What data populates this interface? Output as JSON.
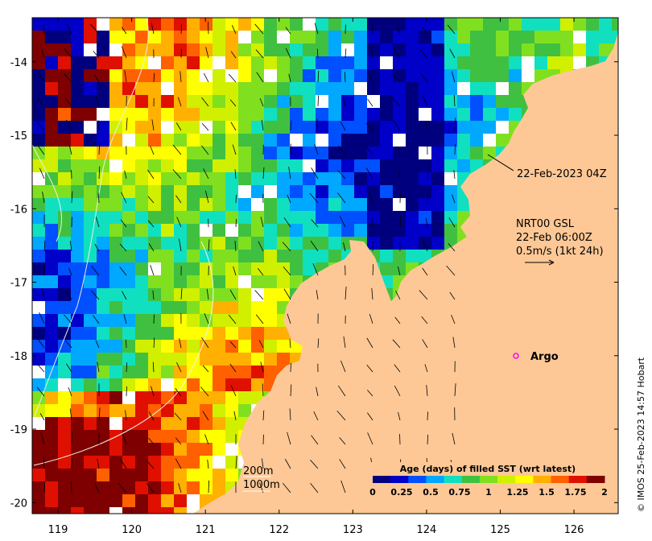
{
  "map": {
    "lon_ticks": [
      "119",
      "120",
      "121",
      "122",
      "123",
      "124",
      "125",
      "126"
    ],
    "lat_ticks": [
      "-14",
      "-15",
      "-16",
      "-17",
      "-18",
      "-19",
      "-20"
    ],
    "lon_range": [
      118.65,
      126.6
    ],
    "lat_range": [
      -20.15,
      -13.4
    ],
    "land_color": "#fdc896",
    "no_data_color": "#ffffff"
  },
  "annotations": {
    "swath_time": "22-Feb-2023 04Z",
    "current_source": "NRT00 GSL",
    "current_time": "22-Feb 06:00Z",
    "current_scale": "0.5m/s (1kt 24h)",
    "argo_label": "Argo",
    "argo_marker_color": "#ff00ff",
    "contour_200": "200m",
    "contour_1000": "1000m"
  },
  "colorbar": {
    "title": "Age (days) of filled SST (wrt latest)",
    "ticks": [
      "0",
      "0.25",
      "0.5",
      "0.75",
      "1",
      "1.25",
      "1.5",
      "1.75",
      "2"
    ],
    "range": [
      0,
      2
    ],
    "colors": [
      "#00007f",
      "#0000c8",
      "#0050ff",
      "#00a8ff",
      "#10e0c0",
      "#40c040",
      "#80e020",
      "#d0f000",
      "#ffff00",
      "#ffb000",
      "#ff6000",
      "#e01000",
      "#7f0000"
    ]
  },
  "credit": "© IMOS 25-Feb-2023 14:57 Hobart"
}
